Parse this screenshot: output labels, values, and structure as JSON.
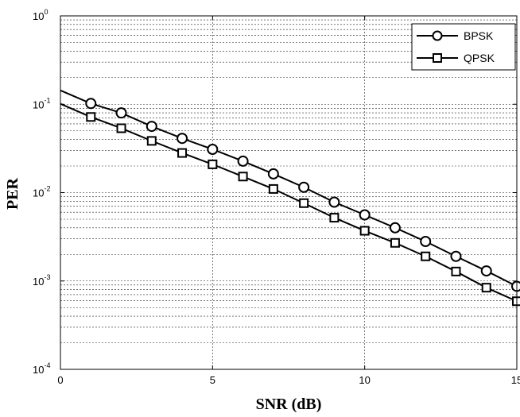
{
  "chart_data": {
    "type": "line",
    "title": "",
    "xlabel": "SNR (dB)",
    "ylabel": "PER",
    "xlim": [
      0,
      15
    ],
    "ylim": [
      0.0001,
      1
    ],
    "yscale": "log",
    "grid": true,
    "legend_position": "top-right",
    "x_ticks": [
      "0",
      "5",
      "10",
      "15"
    ],
    "y_ticks": [
      {
        "base": "10",
        "exp": "0",
        "value": 1
      },
      {
        "base": "10",
        "exp": "-1",
        "value": 0.1
      },
      {
        "base": "10",
        "exp": "-2",
        "value": 0.01
      },
      {
        "base": "10",
        "exp": "-3",
        "value": 0.001
      },
      {
        "base": "10",
        "exp": "-4",
        "value": 0.0001
      }
    ],
    "line_x_range": [
      0,
      15
    ],
    "series": [
      {
        "name": "BPSK",
        "marker": "circle",
        "color": "#000000",
        "x": [
          1,
          2,
          3,
          4,
          5,
          6,
          7,
          8,
          9,
          10,
          11,
          12,
          13,
          14,
          15
        ],
        "values": [
          0.102,
          0.0798,
          0.0562,
          0.0411,
          0.0309,
          0.0227,
          0.0163,
          0.0115,
          0.0078,
          0.0056,
          0.004,
          0.0028,
          0.0019,
          0.0013,
          0.00087
        ]
      },
      {
        "name": "QPSK",
        "marker": "square",
        "color": "#000000",
        "x": [
          1,
          2,
          3,
          4,
          5,
          6,
          7,
          8,
          9,
          10,
          11,
          12,
          13,
          14,
          15
        ],
        "values": [
          0.0718,
          0.0535,
          0.0385,
          0.0281,
          0.0209,
          0.0152,
          0.011,
          0.0076,
          0.0052,
          0.0037,
          0.0027,
          0.0019,
          0.00128,
          0.00084,
          0.00059
        ]
      }
    ]
  }
}
